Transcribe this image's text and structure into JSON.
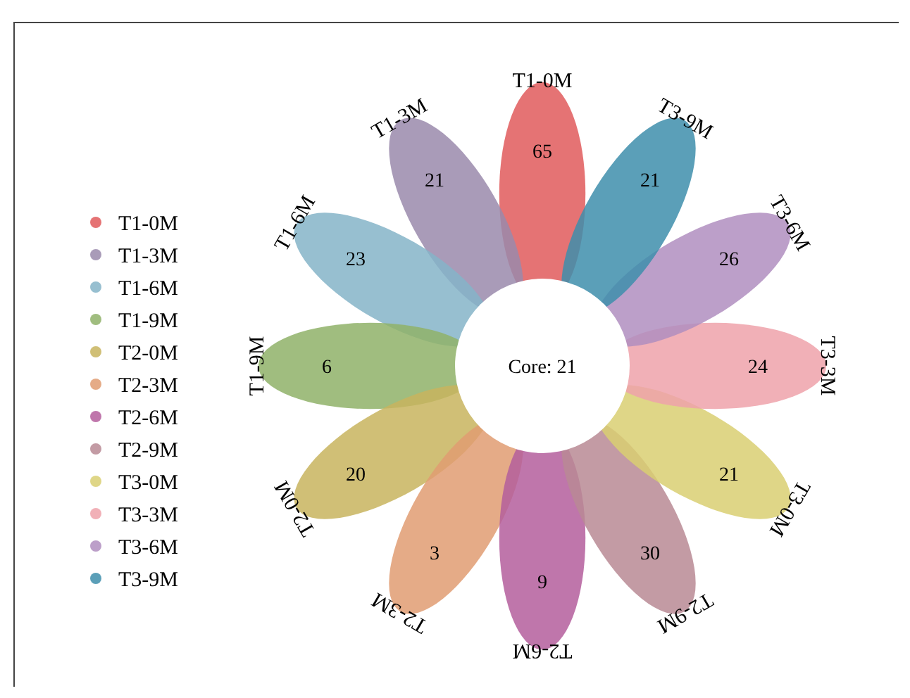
{
  "chart_data": {
    "type": "other",
    "categories": [
      "T1-0M",
      "T1-3M",
      "T1-6M",
      "T1-9M",
      "T2-0M",
      "T2-3M",
      "T2-6M",
      "T2-9M",
      "T3-0M",
      "T3-3M",
      "T3-6M",
      "T3-9M"
    ],
    "values": [
      65,
      21,
      23,
      6,
      20,
      3,
      9,
      30,
      21,
      24,
      26,
      21
    ],
    "colors": [
      "#e05a5c",
      "#9a8aab",
      "#85b4c8",
      "#8fb268",
      "#c8b45e",
      "#e09c72",
      "#b45e9c",
      "#b98a94",
      "#d9cf72",
      "#eea2aa",
      "#b08ec0",
      "#3e8eab"
    ],
    "annotations": [
      "Core: 21"
    ],
    "data_labels": true
  }
}
